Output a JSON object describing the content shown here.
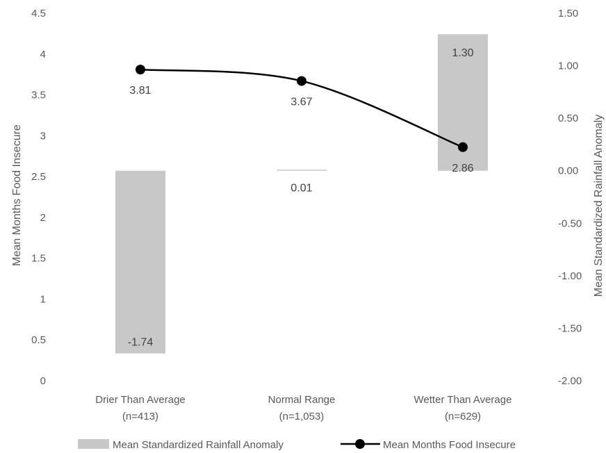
{
  "chart_data": {
    "type": "bar+line",
    "categories": [
      "Drier Than Average",
      "Normal Range",
      "Wetter Than Average"
    ],
    "category_sublabels": [
      "(n=413)",
      "(n=1,053)",
      "(n=629)"
    ],
    "series": [
      {
        "name": "Mean Standardized Rainfall Anomaly",
        "type": "bar",
        "axis": "right",
        "values": [
          -1.74,
          0.01,
          1.3
        ],
        "labels": [
          "-1.74",
          "0.01",
          "1.30"
        ],
        "color": "#c8c8c8"
      },
      {
        "name": "Mean Months Food Insecure",
        "type": "line",
        "axis": "left",
        "values": [
          3.81,
          3.67,
          2.86
        ],
        "labels": [
          "3.81",
          "3.67",
          "2.86"
        ],
        "color": "#000000"
      }
    ],
    "ylabel": "Mean Months Food Insecure",
    "ylabel_right": "Mean Standardized Rainfall Anomaly",
    "ylim": [
      0,
      4.5
    ],
    "ylim_right": [
      -2.0,
      1.5
    ],
    "y_ticks": [
      "0",
      "0.5",
      "1",
      "1.5",
      "2",
      "2.5",
      "3",
      "3.5",
      "4",
      "4.5"
    ],
    "y_ticks_right": [
      "-2.00",
      "-1.50",
      "-1.00",
      "-0.50",
      "0.00",
      "0.50",
      "1.00",
      "1.50"
    ],
    "grid": false,
    "legend_position": "bottom"
  }
}
